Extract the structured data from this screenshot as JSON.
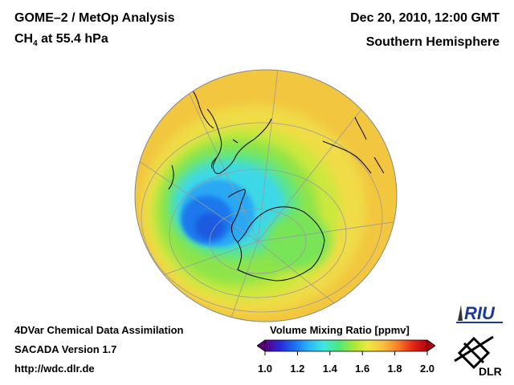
{
  "header": {
    "title_line1": "GOME–2 / MetOp Analysis",
    "species": "CH",
    "species_sub": "4",
    "pressure": " at 55.4 hPa",
    "datetime": "Dec 20, 2010, 12:00 GMT",
    "hemisphere": "Southern Hemisphere"
  },
  "footer": {
    "line1": "4DVar Chemical Data Assimilation",
    "line2": "SACADA Version 1.7",
    "line3": "http://wdc.dlr.de"
  },
  "colorbar": {
    "title": "Volume Mixing Ratio [ppmv]",
    "ticks": [
      "1.0",
      "1.2",
      "1.4",
      "1.6",
      "1.8",
      "2.0"
    ],
    "min": 1.0,
    "max": 2.0,
    "colors": [
      "#5a0080",
      "#2a28d8",
      "#1a70f0",
      "#2ab8f8",
      "#40e8e0",
      "#50e878",
      "#a8e838",
      "#f0e840",
      "#f8c040",
      "#f88028",
      "#e82818",
      "#b00010"
    ]
  },
  "logos": {
    "riu": "RIU",
    "dlr": "DLR"
  },
  "map": {
    "background_color": "#f2c63e",
    "graticule_color": "#9a9a9a"
  }
}
